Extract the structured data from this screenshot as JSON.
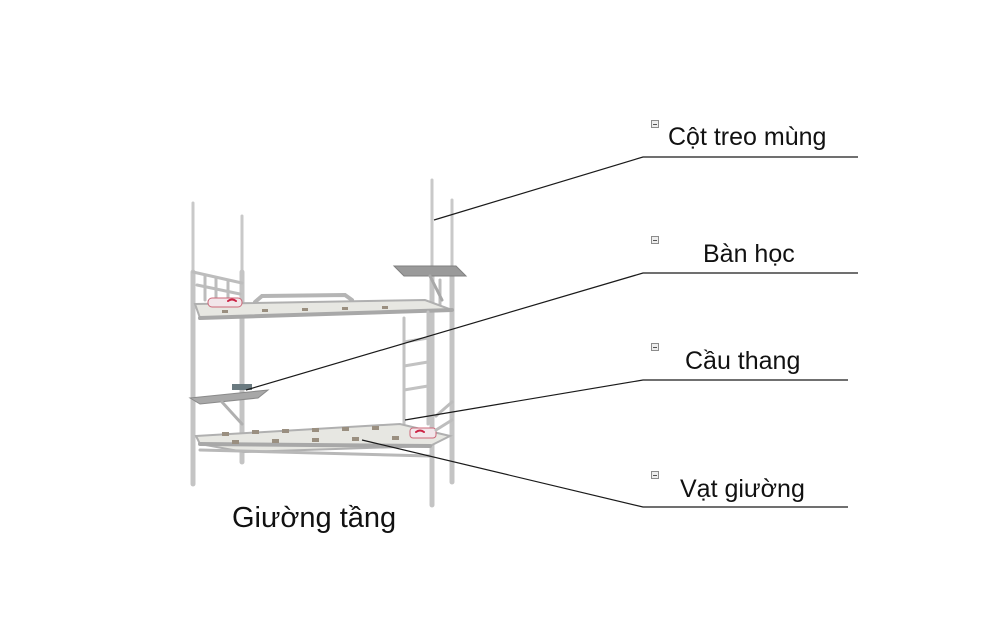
{
  "caption": "Giường tầng",
  "labels": [
    {
      "id": "cot-treo-mung",
      "text": "Cột treo mùng"
    },
    {
      "id": "ban-hoc",
      "text": "Bàn học"
    },
    {
      "id": "cau-thang",
      "text": "Cầu thang"
    },
    {
      "id": "vat-giuong",
      "text": "Vạt giường"
    }
  ],
  "colors": {
    "frame": "#c9c9c9",
    "frame_dark": "#9a9a9a",
    "mattress": "#e7e7e2",
    "leader_line": "#1a1a1a"
  },
  "icons": {
    "marker": "collapse-square-icon"
  }
}
